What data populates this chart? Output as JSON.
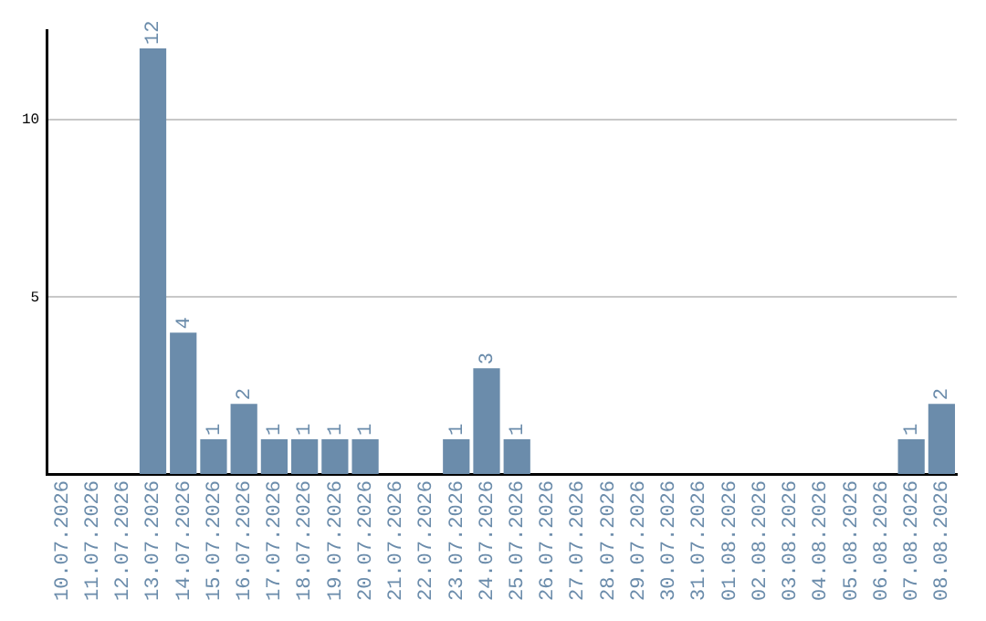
{
  "chart_data": {
    "type": "bar",
    "categories": [
      "10.07.2026",
      "11.07.2026",
      "12.07.2026",
      "13.07.2026",
      "14.07.2026",
      "15.07.2026",
      "16.07.2026",
      "17.07.2026",
      "18.07.2026",
      "19.07.2026",
      "20.07.2026",
      "21.07.2026",
      "22.07.2026",
      "23.07.2026",
      "24.07.2026",
      "25.07.2026",
      "26.07.2026",
      "27.07.2026",
      "28.07.2026",
      "29.07.2026",
      "30.07.2026",
      "31.07.2026",
      "01.08.2026",
      "02.08.2026",
      "03.08.2026",
      "04.08.2026",
      "05.08.2026",
      "06.08.2026",
      "07.08.2026",
      "08.08.2026"
    ],
    "values": [
      null,
      null,
      null,
      12,
      4,
      1,
      2,
      1,
      1,
      1,
      1,
      null,
      null,
      1,
      3,
      1,
      null,
      null,
      null,
      null,
      null,
      null,
      null,
      null,
      null,
      null,
      null,
      null,
      1,
      2
    ],
    "color": "#6b8cab",
    "ylim": [
      0,
      12.5
    ],
    "yticks": [
      {
        "value": 0,
        "label": null
      },
      5,
      10
    ],
    "grid": "y",
    "data_labels": true,
    "legend": false
  }
}
